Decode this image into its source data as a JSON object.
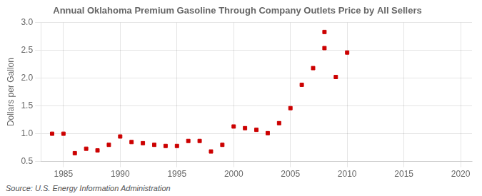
{
  "chart_data": {
    "type": "scatter",
    "title": "Annual Oklahoma Premium Gasoline Through Company Outlets Price by All Sellers",
    "y_label": "Dollars per Gallon",
    "annotation": "Source: U.S. Energy Information Administration",
    "x": [
      1984,
      1985,
      1986,
      1987,
      1988,
      1989,
      1990,
      1991,
      1992,
      1993,
      1994,
      1995,
      1996,
      1997,
      1998,
      1999,
      2000,
      2001,
      2002,
      2003,
      2004,
      2005,
      2006,
      2007,
      2008,
      2008,
      2009,
      2010
    ],
    "values": [
      1.0,
      1.0,
      0.65,
      0.73,
      0.7,
      0.8,
      0.95,
      0.85,
      0.83,
      0.8,
      0.78,
      0.78,
      0.87,
      0.87,
      0.68,
      0.8,
      1.13,
      1.1,
      1.07,
      1.01,
      1.19,
      1.46,
      1.88,
      2.18,
      2.54,
      2.83,
      2.02,
      2.46
    ],
    "color": "#cc0000",
    "marker": "square",
    "xlim": [
      1983,
      2021
    ],
    "xticks": [
      1985,
      1990,
      1995,
      2000,
      2005,
      2010,
      2015,
      2020
    ],
    "ylim": [
      0.5,
      3.0
    ],
    "yticks": [
      0.5,
      {
        "value": 1.0,
        "label": "1.0"
      },
      1.5,
      {
        "value": 2.0,
        "label": "2.0"
      },
      2.5,
      {
        "value": 3.0,
        "label": "3.0"
      }
    ],
    "grid": true
  }
}
